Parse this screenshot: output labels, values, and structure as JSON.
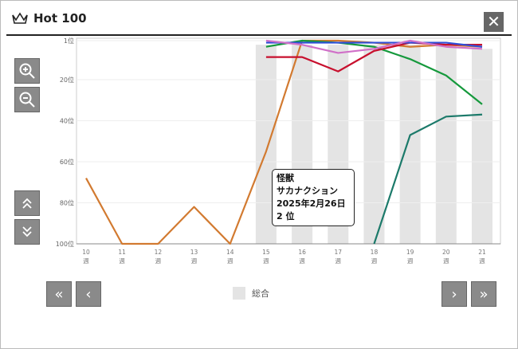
{
  "title": "Hot 100",
  "icons": {
    "crown": "crown-icon",
    "close": "close-icon",
    "zoom_in": "zoom-in-icon",
    "zoom_out": "zoom-out-icon",
    "up": "double-chevron-up-icon",
    "down": "double-chevron-down-icon"
  },
  "nav": {
    "first": "«",
    "prev": "‹",
    "next": "›",
    "last": "»"
  },
  "tooltip": {
    "title": "怪獣",
    "artist": "サカナクション",
    "date": "2025年2月26日",
    "rank": "2 位"
  },
  "chart_data": {
    "type": "line",
    "x": [
      10,
      11,
      12,
      13,
      14,
      15,
      16,
      17,
      18,
      19,
      20,
      21
    ],
    "x_tick_labels": [
      "10\n週",
      "11\n週",
      "12\n週",
      "13\n週",
      "14\n週",
      "15\n週",
      "16\n週",
      "17\n週",
      "18\n週",
      "19\n週",
      "20\n週",
      "21\n週"
    ],
    "y_tick_labels": [
      "1位",
      "20位",
      "40位",
      "60位",
      "80位",
      "100位"
    ],
    "y_ticks": [
      1,
      20,
      40,
      60,
      80,
      100
    ],
    "ylim": [
      1,
      100
    ],
    "y_inverted": true,
    "grid": true,
    "bars": {
      "name": "総合",
      "color": "#e4e4e4",
      "x": [
        15,
        16,
        17,
        18,
        19,
        20,
        21
      ],
      "values": [
        3,
        3,
        3,
        3,
        3,
        3,
        5
      ]
    },
    "legend": [
      "総合"
    ],
    "legend_position": "bottom",
    "series": [
      {
        "color": "#d27a30",
        "values": [
          68,
          100,
          100,
          82,
          100,
          55,
          1,
          1,
          2,
          4,
          3,
          4
        ]
      },
      {
        "color": "#1c7a6a",
        "values": [
          null,
          null,
          null,
          null,
          null,
          null,
          null,
          null,
          100,
          47,
          38,
          37
        ]
      },
      {
        "color": "#15993c",
        "values": [
          null,
          null,
          null,
          null,
          null,
          4,
          1,
          2,
          4,
          10,
          18,
          32
        ]
      },
      {
        "color": "#c8102e",
        "values": [
          null,
          null,
          null,
          null,
          null,
          9,
          9,
          16,
          6,
          2,
          3,
          3
        ]
      },
      {
        "color": "#2f4fd8",
        "values": [
          null,
          null,
          null,
          null,
          null,
          2,
          2,
          2,
          2,
          2,
          2,
          4
        ]
      },
      {
        "color": "#d070c8",
        "values": [
          null,
          null,
          null,
          null,
          null,
          1,
          3,
          7,
          5,
          1,
          4,
          5
        ]
      }
    ]
  }
}
